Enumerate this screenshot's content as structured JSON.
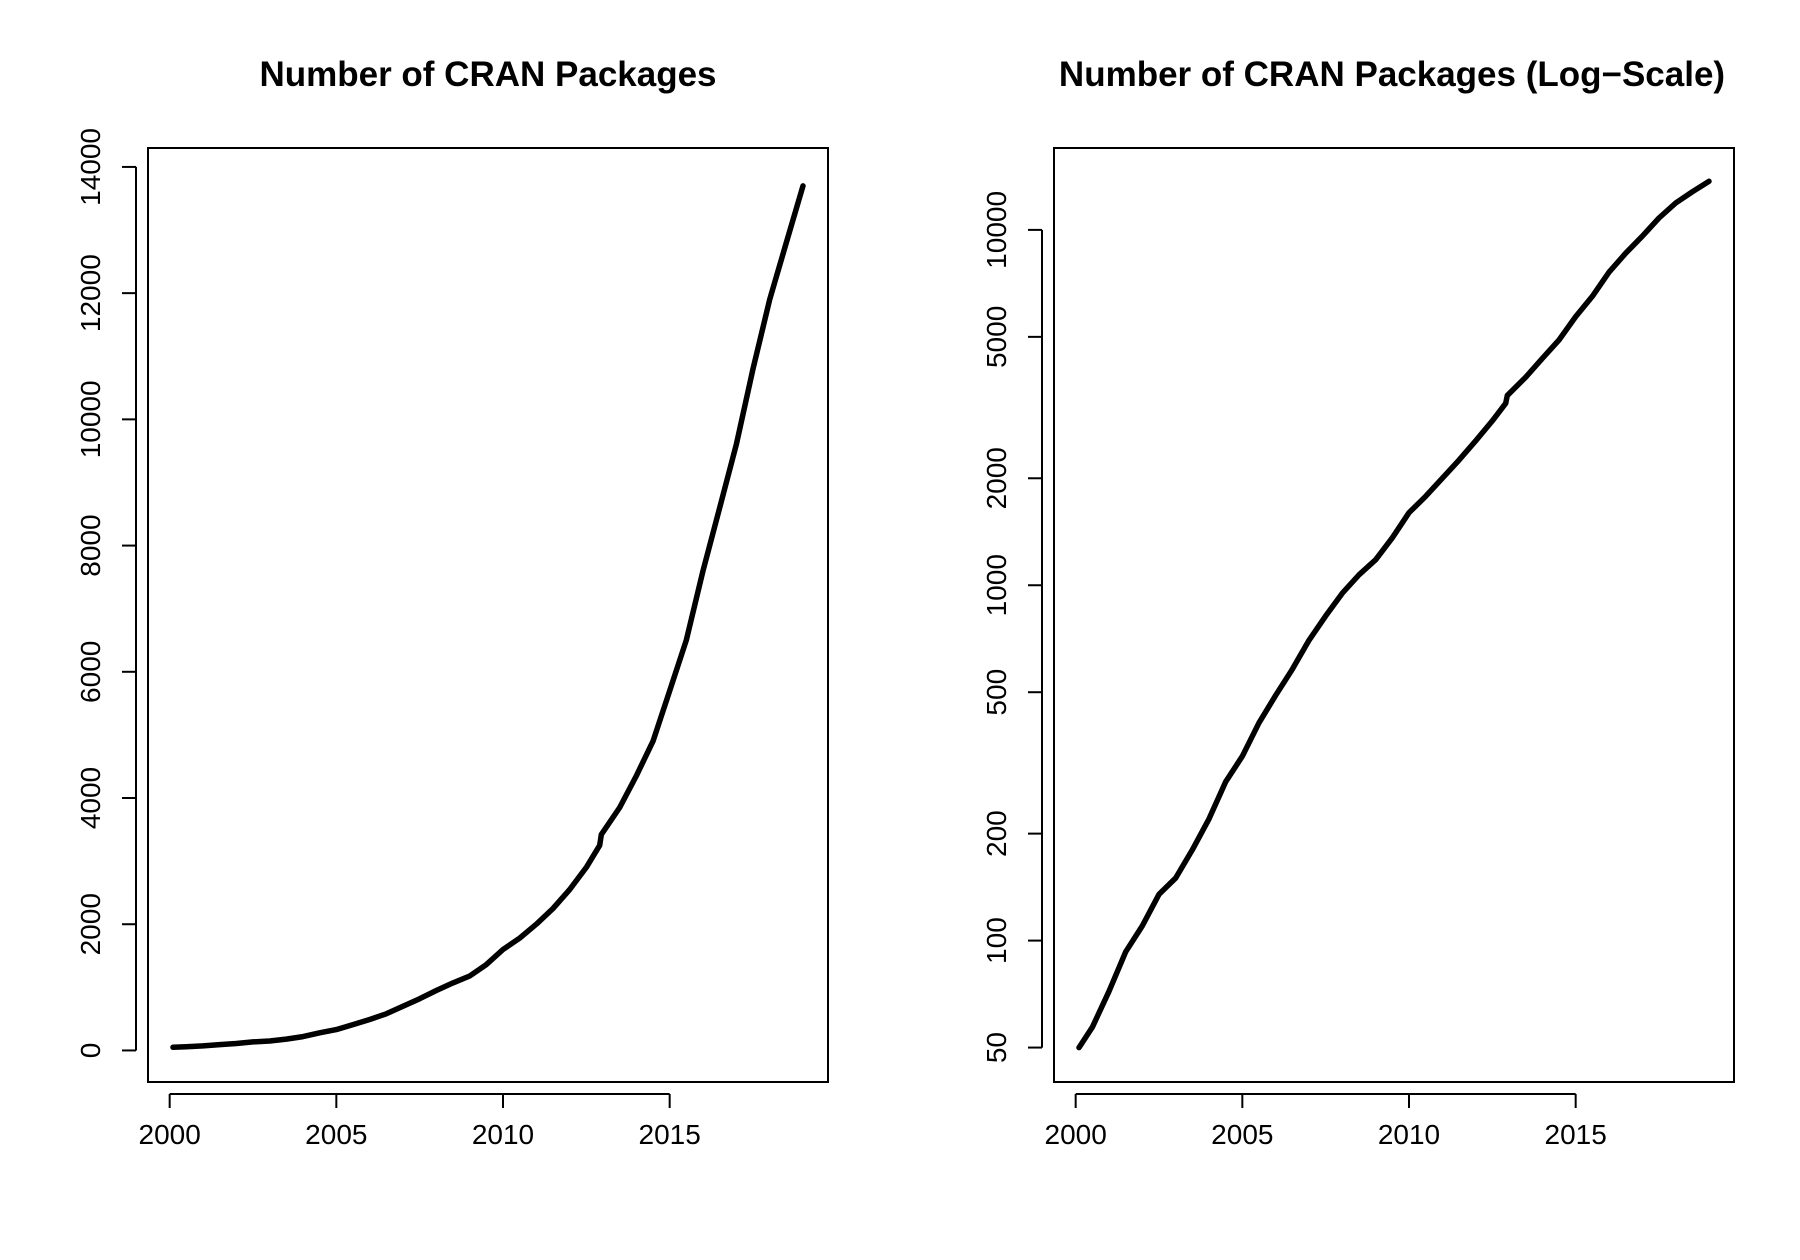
{
  "chart_data": [
    {
      "type": "line",
      "title": "Number of CRAN Packages",
      "xlabel": "",
      "ylabel": "",
      "log_y": false,
      "xlim": [
        1999.35,
        2019.75
      ],
      "ylim": [
        -500,
        14300
      ],
      "x_ticks": [
        2000,
        2005,
        2010,
        2015
      ],
      "x_tick_labels": [
        "2000",
        "2005",
        "2010",
        "2015"
      ],
      "y_ticks": [
        0,
        2000,
        4000,
        6000,
        8000,
        10000,
        12000,
        14000
      ],
      "y_tick_labels": [
        "0",
        "2000",
        "4000",
        "6000",
        "8000",
        "10000",
        "12000",
        "14000"
      ],
      "grid": false,
      "series": [
        {
          "color": "#000000",
          "x": [
            2000.1,
            2000.5,
            2001.0,
            2001.5,
            2002.0,
            2002.5,
            2003.0,
            2003.5,
            2004.0,
            2004.5,
            2005.0,
            2005.5,
            2006.0,
            2006.5,
            2007.0,
            2007.5,
            2008.0,
            2008.5,
            2009.0,
            2009.5,
            2010.0,
            2010.5,
            2011.0,
            2011.5,
            2012.0,
            2012.5,
            2012.9,
            2012.95,
            2013.5,
            2014.0,
            2014.5,
            2015.0,
            2015.5,
            2016.0,
            2016.5,
            2017.0,
            2017.5,
            2018.0,
            2018.5,
            2019.0
          ],
          "values": [
            50,
            57,
            72,
            93,
            110,
            135,
            150,
            180,
            220,
            280,
            330,
            410,
            490,
            580,
            700,
            820,
            950,
            1070,
            1180,
            1360,
            1600,
            1780,
            2000,
            2250,
            2550,
            2900,
            3250,
            3420,
            3850,
            4350,
            4900,
            5700,
            6500,
            7600,
            8600,
            9600,
            10800,
            11900,
            12800,
            13700
          ]
        }
      ]
    },
    {
      "type": "line",
      "title": "Number of CRAN Packages (Log−Scale)",
      "xlabel": "",
      "ylabel": "",
      "log_y": true,
      "xlim": [
        1999.35,
        2019.75
      ],
      "ylim": [
        40,
        17000
      ],
      "x_ticks": [
        2000,
        2005,
        2010,
        2015
      ],
      "x_tick_labels": [
        "2000",
        "2005",
        "2010",
        "2015"
      ],
      "y_ticks": [
        50,
        100,
        200,
        500,
        1000,
        2000,
        5000,
        10000
      ],
      "y_tick_labels": [
        "50",
        "100",
        "200",
        "500",
        "1000",
        "2000",
        "5000",
        "10000"
      ],
      "grid": false,
      "series": [
        {
          "color": "#000000",
          "x": [
            2000.1,
            2000.5,
            2001.0,
            2001.5,
            2002.0,
            2002.5,
            2003.0,
            2003.5,
            2004.0,
            2004.5,
            2005.0,
            2005.5,
            2006.0,
            2006.5,
            2007.0,
            2007.5,
            2008.0,
            2008.5,
            2009.0,
            2009.5,
            2010.0,
            2010.5,
            2011.0,
            2011.5,
            2012.0,
            2012.5,
            2012.9,
            2012.95,
            2013.5,
            2014.0,
            2014.5,
            2015.0,
            2015.5,
            2016.0,
            2016.5,
            2017.0,
            2017.5,
            2018.0,
            2018.5,
            2019.0
          ],
          "values": [
            50,
            57,
            72,
            93,
            110,
            135,
            150,
            180,
            220,
            280,
            330,
            410,
            490,
            580,
            700,
            820,
            950,
            1070,
            1180,
            1360,
            1600,
            1780,
            2000,
            2250,
            2550,
            2900,
            3250,
            3420,
            3850,
            4350,
            4900,
            5700,
            6500,
            7600,
            8600,
            9600,
            10800,
            11900,
            12800,
            13700
          ]
        }
      ]
    }
  ]
}
